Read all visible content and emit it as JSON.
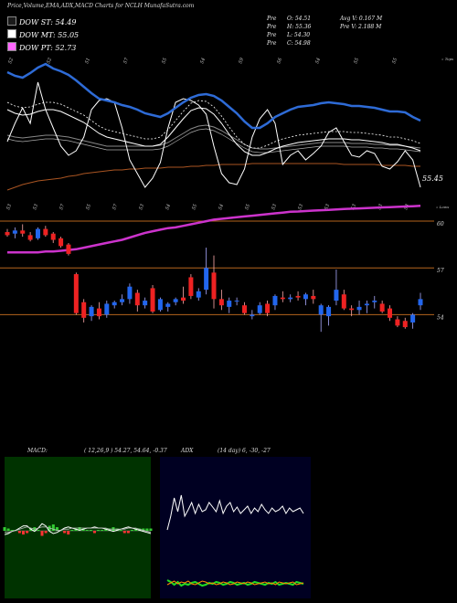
{
  "header": {
    "title": "Price,Volume,EMA,ADX,MACD Charts for NCLH MunafaSutra.com",
    "dow_st": "DOW ST: 54.49",
    "dow_mt": "DOW MT: 55.05",
    "dow_pt": "DOW PT: 52.73",
    "swatch_colors": [
      "#1a1a1a",
      "#ffffff",
      "#ff66ff"
    ],
    "ohlc": [
      {
        "k": "Pre",
        "v": "O: 54.51"
      },
      {
        "k": "Pre",
        "v": "H: 55.36"
      },
      {
        "k": "Pre",
        "v": "L: 54.30"
      },
      {
        "k": "Pre",
        "v": "C: 54.98"
      }
    ],
    "avg_v": "Avg V: 0.167 M",
    "pre_v": "Pre  V: 2.188  M"
  },
  "ema_panel": {
    "top_label": "« Tops",
    "bottom_label": "« Lows",
    "last_value": "55.45",
    "top_numbers": [
      "52",
      "52",
      "51",
      "57",
      "55",
      "54",
      "59",
      "56",
      "54",
      "55",
      "55"
    ],
    "low_numbers": [
      "53",
      "53",
      "57",
      "55",
      "57",
      "53",
      "54",
      "55",
      "54",
      "55",
      "53",
      "53",
      "53",
      "53",
      "53",
      "53"
    ],
    "colors": {
      "ema_fast": "#2e6bd6",
      "ema_slow_line": "#aa5522",
      "white_lines": "#ffffff",
      "grey_lines": "#888888"
    }
  },
  "price_panel": {
    "levels": [
      {
        "value": 60,
        "label": "60"
      },
      {
        "value": 57,
        "label": "57"
      },
      {
        "value": 54,
        "label": "54"
      }
    ],
    "level_color": "#b5651d",
    "up_color": "#2266ee",
    "down_color": "#ee2222",
    "ma_color": "#cc33cc"
  },
  "macd_panel": {
    "title": "MACD:",
    "params": "( 12,26,9 ) 54.27,  54.64,  -0.37",
    "bg_color": "#003300",
    "hist_up": "#33cc33",
    "hist_down": "#ff3333"
  },
  "adx_panel": {
    "title": "ADX",
    "params": "(14  day) 6,  -30,  -27",
    "bg_color": "#000022",
    "adx_color": "#ffffff",
    "plus_color": "#22dd22",
    "minus_color": "#ff8800"
  },
  "chart_data": {
    "type": "candlestick",
    "symbol": "NCLH",
    "ylim": [
      52.5,
      61
    ],
    "candles": [
      {
        "o": 59.3,
        "h": 59.5,
        "l": 59.0,
        "c": 59.1
      },
      {
        "o": 59.2,
        "h": 59.6,
        "l": 58.9,
        "c": 59.4
      },
      {
        "o": 59.4,
        "h": 59.8,
        "l": 59.0,
        "c": 59.2
      },
      {
        "o": 59.1,
        "h": 59.3,
        "l": 58.7,
        "c": 58.8
      },
      {
        "o": 58.9,
        "h": 59.6,
        "l": 58.8,
        "c": 59.5
      },
      {
        "o": 59.5,
        "h": 59.7,
        "l": 59.0,
        "c": 59.1
      },
      {
        "o": 59.2,
        "h": 59.3,
        "l": 58.6,
        "c": 58.8
      },
      {
        "o": 58.9,
        "h": 59.0,
        "l": 58.3,
        "c": 58.4
      },
      {
        "o": 58.5,
        "h": 58.6,
        "l": 57.8,
        "c": 57.9
      },
      {
        "o": 56.6,
        "h": 56.7,
        "l": 54.0,
        "c": 54.1
      },
      {
        "o": 54.8,
        "h": 55.0,
        "l": 53.5,
        "c": 53.8
      },
      {
        "o": 53.9,
        "h": 54.6,
        "l": 53.6,
        "c": 54.5
      },
      {
        "o": 54.4,
        "h": 54.8,
        "l": 53.7,
        "c": 53.9
      },
      {
        "o": 54.0,
        "h": 54.9,
        "l": 53.8,
        "c": 54.7
      },
      {
        "o": 54.6,
        "h": 54.9,
        "l": 54.4,
        "c": 54.8
      },
      {
        "o": 54.8,
        "h": 55.3,
        "l": 54.6,
        "c": 55.0
      },
      {
        "o": 55.0,
        "h": 56.0,
        "l": 54.7,
        "c": 55.8
      },
      {
        "o": 55.4,
        "h": 55.6,
        "l": 54.2,
        "c": 54.6
      },
      {
        "o": 54.6,
        "h": 55.1,
        "l": 54.4,
        "c": 54.9
      },
      {
        "o": 55.7,
        "h": 55.9,
        "l": 54.1,
        "c": 54.2
      },
      {
        "o": 54.3,
        "h": 55.1,
        "l": 54.2,
        "c": 55.0
      },
      {
        "o": 54.5,
        "h": 54.8,
        "l": 54.2,
        "c": 54.7
      },
      {
        "o": 54.8,
        "h": 55.1,
        "l": 54.6,
        "c": 55.0
      },
      {
        "o": 55.1,
        "h": 55.8,
        "l": 54.7,
        "c": 54.9
      },
      {
        "o": 56.4,
        "h": 56.6,
        "l": 55.0,
        "c": 55.2
      },
      {
        "o": 55.1,
        "h": 55.7,
        "l": 54.9,
        "c": 55.5
      },
      {
        "o": 55.6,
        "h": 58.3,
        "l": 55.3,
        "c": 57.0
      },
      {
        "o": 56.7,
        "h": 57.8,
        "l": 54.4,
        "c": 55.0
      },
      {
        "o": 55.0,
        "h": 55.6,
        "l": 54.3,
        "c": 54.6
      },
      {
        "o": 54.5,
        "h": 55.1,
        "l": 54.1,
        "c": 54.9
      },
      {
        "o": 54.9,
        "h": 55.1,
        "l": 54.6,
        "c": 54.9
      },
      {
        "o": 54.6,
        "h": 54.8,
        "l": 54.0,
        "c": 54.1
      },
      {
        "o": 53.9,
        "h": 54.3,
        "l": 53.7,
        "c": 54.0
      },
      {
        "o": 54.1,
        "h": 54.8,
        "l": 54.0,
        "c": 54.6
      },
      {
        "o": 54.7,
        "h": 54.9,
        "l": 53.9,
        "c": 54.1
      },
      {
        "o": 54.6,
        "h": 55.3,
        "l": 54.3,
        "c": 55.2
      },
      {
        "o": 55.1,
        "h": 55.5,
        "l": 54.8,
        "c": 55.0
      },
      {
        "o": 55.0,
        "h": 55.3,
        "l": 54.8,
        "c": 55.1
      },
      {
        "o": 55.2,
        "h": 55.5,
        "l": 54.9,
        "c": 55.1
      },
      {
        "o": 55.0,
        "h": 55.4,
        "l": 54.6,
        "c": 55.3
      },
      {
        "o": 55.2,
        "h": 55.6,
        "l": 54.7,
        "c": 55.0
      },
      {
        "o": 54.0,
        "h": 54.7,
        "l": 52.9,
        "c": 54.6
      },
      {
        "o": 53.9,
        "h": 54.6,
        "l": 53.3,
        "c": 54.5
      },
      {
        "o": 54.9,
        "h": 56.9,
        "l": 54.6,
        "c": 55.6
      },
      {
        "o": 55.3,
        "h": 55.6,
        "l": 54.3,
        "c": 54.4
      },
      {
        "o": 54.4,
        "h": 54.6,
        "l": 53.9,
        "c": 54.3
      },
      {
        "o": 54.3,
        "h": 54.9,
        "l": 54.0,
        "c": 54.5
      },
      {
        "o": 54.6,
        "h": 54.9,
        "l": 54.1,
        "c": 54.7
      },
      {
        "o": 54.8,
        "h": 55.2,
        "l": 54.4,
        "c": 54.9
      },
      {
        "o": 54.7,
        "h": 54.9,
        "l": 54.1,
        "c": 54.2
      },
      {
        "o": 54.4,
        "h": 54.6,
        "l": 53.6,
        "c": 53.8
      },
      {
        "o": 53.7,
        "h": 53.9,
        "l": 53.2,
        "c": 53.3
      },
      {
        "o": 53.6,
        "h": 53.8,
        "l": 53.1,
        "c": 53.2
      },
      {
        "o": 53.5,
        "h": 54.1,
        "l": 53.1,
        "c": 54.0
      },
      {
        "o": 54.6,
        "h": 55.4,
        "l": 54.3,
        "c": 55.0
      }
    ],
    "ma_long": [
      58.0,
      58.0,
      58.0,
      58.0,
      58.0,
      58.05,
      58.05,
      58.1,
      58.15,
      58.2,
      58.3,
      58.4,
      58.5,
      58.6,
      58.7,
      58.8,
      58.95,
      59.1,
      59.25,
      59.35,
      59.45,
      59.55,
      59.6,
      59.7,
      59.8,
      59.9,
      60.0,
      60.1,
      60.15,
      60.2,
      60.25,
      60.3,
      60.35,
      60.4,
      60.45,
      60.5,
      60.55,
      60.6,
      60.62,
      60.65,
      60.68,
      60.7,
      60.72,
      60.75,
      60.78,
      60.8,
      60.82,
      60.84,
      60.86,
      60.88,
      60.9,
      60.92,
      60.94,
      60.96,
      60.98
    ],
    "ema_fast": [
      79,
      83,
      85,
      80,
      74,
      70,
      75,
      78,
      82,
      88,
      95,
      102,
      108,
      110,
      112,
      115,
      117,
      120,
      124,
      126,
      128,
      124,
      118,
      112,
      107,
      104,
      103,
      105,
      110,
      117,
      124,
      133,
      140,
      140,
      135,
      128,
      124,
      120,
      117,
      116,
      115,
      113,
      112,
      113,
      114,
      116,
      116,
      117,
      118,
      120,
      122,
      122,
      123,
      128,
      132
    ],
    "ema_white": [
      120,
      124,
      126,
      125,
      122,
      120,
      120,
      122,
      126,
      130,
      134,
      140,
      146,
      150,
      152,
      154,
      156,
      158,
      160,
      160,
      158,
      150,
      140,
      130,
      121,
      118,
      119,
      125,
      135,
      147,
      158,
      166,
      170,
      170,
      167,
      163,
      160,
      158,
      156,
      155,
      154,
      153,
      152,
      152,
      152,
      153,
      153,
      154,
      155,
      156,
      158,
      158,
      160,
      162,
      165
    ],
    "ema_grey": [
      148,
      150,
      151,
      150,
      149,
      148,
      148,
      149,
      150,
      152,
      154,
      156,
      158,
      160,
      160,
      160,
      160,
      160,
      160,
      160,
      159,
      156,
      151,
      146,
      141,
      138,
      137,
      139,
      143,
      148,
      153,
      158,
      162,
      163,
      163,
      162,
      161,
      160,
      159,
      158,
      157,
      156,
      156,
      156,
      156,
      157,
      157,
      157,
      158,
      158,
      159,
      159,
      160,
      161,
      162
    ],
    "ema_orange": [
      208,
      205,
      202,
      200,
      198,
      197,
      196,
      195,
      193,
      192,
      190,
      189,
      188,
      187,
      186,
      186,
      185,
      185,
      184,
      184,
      184,
      183,
      183,
      183,
      182,
      182,
      181,
      181,
      180,
      180,
      180,
      180,
      179,
      179,
      179,
      179,
      179,
      179,
      179,
      179,
      179,
      179,
      179,
      179,
      180,
      180,
      180,
      180,
      180,
      181,
      181,
      181,
      181,
      182,
      182
    ],
    "ema_jagged": [
      155,
      135,
      118,
      135,
      90,
      120,
      140,
      160,
      170,
      165,
      150,
      120,
      110,
      108,
      112,
      140,
      175,
      190,
      205,
      195,
      178,
      140,
      112,
      108,
      110,
      115,
      125,
      160,
      190,
      200,
      202,
      185,
      150,
      130,
      120,
      135,
      180,
      170,
      165,
      175,
      168,
      160,
      145,
      140,
      155,
      170,
      172,
      165,
      168,
      182,
      185,
      177,
      165,
      175,
      205
    ],
    "macd_line": [
      28,
      27,
      25,
      24,
      22,
      20,
      20,
      23,
      25,
      22,
      18,
      20,
      25,
      27,
      26,
      24,
      22,
      21,
      22,
      23,
      24,
      23,
      22,
      22,
      21,
      22,
      22,
      23,
      24,
      25,
      24,
      23,
      22,
      21,
      22,
      23,
      24,
      25,
      26,
      27
    ],
    "macd_signal": [
      26,
      26,
      25,
      24,
      23,
      22,
      21,
      22,
      23,
      22,
      21,
      21,
      22,
      23,
      24,
      24,
      23,
      23,
      22,
      22,
      22,
      22,
      22,
      22,
      22,
      22,
      22,
      22,
      23,
      23,
      23,
      23,
      23,
      22,
      22,
      22,
      23,
      24,
      25,
      26
    ],
    "adx_main": [
      40,
      55,
      75,
      60,
      78,
      55,
      62,
      70,
      58,
      68,
      60,
      62,
      70,
      65,
      60,
      72,
      58,
      66,
      70,
      60,
      65,
      58,
      62,
      66,
      58,
      64,
      60,
      68,
      62,
      58,
      64,
      60,
      62,
      66,
      58,
      64,
      60,
      62,
      64,
      58
    ],
    "adx_plus": [
      20,
      18,
      15,
      18,
      14,
      16,
      15,
      17,
      18,
      16,
      14,
      15,
      17,
      16,
      18,
      17,
      15,
      16,
      18,
      17,
      15,
      16,
      17,
      15,
      16,
      18,
      17,
      16,
      15,
      17,
      16,
      18,
      15,
      16,
      17,
      16,
      15,
      18,
      17,
      16
    ],
    "adx_minus": [
      15,
      17,
      19,
      16,
      18,
      17,
      19,
      16,
      15,
      17,
      19,
      18,
      16,
      17,
      15,
      16,
      18,
      17,
      15,
      16,
      18,
      17,
      16,
      18,
      17,
      15,
      16,
      17,
      18,
      16,
      17,
      15,
      18,
      17,
      16,
      17,
      18,
      15,
      16,
      17
    ]
  }
}
